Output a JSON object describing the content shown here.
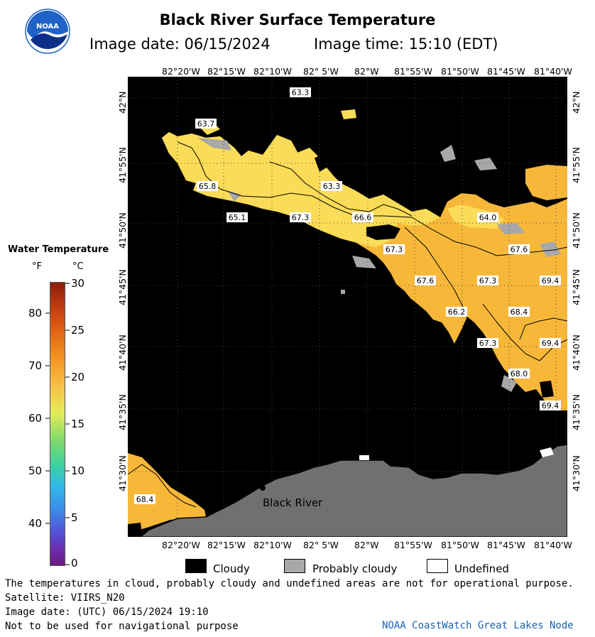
{
  "header": {
    "title": "Black River Surface Temperature",
    "image_date": "Image date: 06/15/2024",
    "image_time": "Image time: 15:10 (EDT)"
  },
  "logo": {
    "text": "NOAA",
    "icon": "noaa-logo-icon",
    "color_primary": "#1f63c8",
    "color_secondary": "#0d2f8a"
  },
  "map": {
    "lon_ticks": [
      "82°20'W",
      "82°15'W",
      "82°10'W",
      "82° 5'W",
      "82°W",
      "81°55'W",
      "81°50'W",
      "81°45'W",
      "81°40'W"
    ],
    "lat_ticks": [
      "42°N",
      "41°55'N",
      "41°50'N",
      "41°45'N",
      "41°40'N",
      "41°35'N",
      "41°30'N"
    ],
    "place_label": "Black River",
    "temperature_labels": [
      "63.3",
      "63.7",
      "65.8",
      "63.3",
      "65.1",
      "67.3",
      "66.6",
      "64.0",
      "67.3",
      "67.6",
      "67.6",
      "67.3",
      "69.4",
      "66.2",
      "68.4",
      "67.3",
      "69.4",
      "68.0",
      "69.4",
      "68.4"
    ],
    "colors": {
      "water_warm": "#f7b536",
      "water_cool": "#fbdb55",
      "cloud": "#000000",
      "probably_cloudy": "#a8a8a8",
      "land": "#707070",
      "undefined": "#ffffff"
    }
  },
  "legend": {
    "title": "Water Temperature",
    "unit_f": "°F",
    "unit_c": "°C",
    "f_ticks": [
      "80",
      "70",
      "60",
      "50",
      "40"
    ],
    "c_ticks": [
      "30",
      "25",
      "20",
      "15",
      "10",
      "5",
      "0"
    ],
    "key": {
      "cloudy": "Cloudy",
      "probably_cloudy": "Probably cloudy",
      "undefined": "Undefined"
    }
  },
  "footer": {
    "disclaimer": "The temperatures in cloud, probably cloudy and undefined areas are not for operational purpose.",
    "satellite": "Satellite: VIIRS_N20",
    "utc_date": "Image date: (UTC) 06/15/2024  19:10",
    "nav_warning": "Not to be used for navigational purpose",
    "credit": "NOAA CoastWatch Great Lakes Node"
  }
}
